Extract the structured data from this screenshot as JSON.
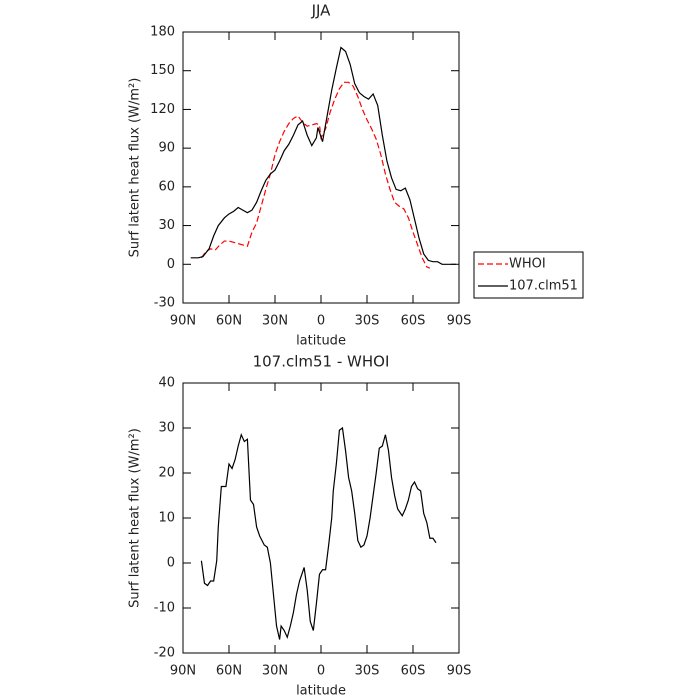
{
  "chart_data": [
    {
      "type": "line",
      "title": "JJA",
      "xlabel": "latitude",
      "ylabel": "Surf latent heat flux (W/m²)",
      "xlim": [
        90,
        -90
      ],
      "xticks": [
        {
          "value": 90,
          "label": "90N"
        },
        {
          "value": 60,
          "label": "60N"
        },
        {
          "value": 30,
          "label": "30N"
        },
        0,
        {
          "value": -30,
          "label": "30S"
        },
        {
          "value": -60,
          "label": "60S"
        },
        {
          "value": -90,
          "label": "90S"
        }
      ],
      "ylim": [
        -30,
        180
      ],
      "yticks": [
        -30,
        0,
        30,
        60,
        90,
        120,
        150,
        180
      ],
      "legend": "right",
      "series": [
        {
          "name": "WHOI",
          "color": "#ff0000",
          "linestyle": "dashed",
          "x": [
            78,
            75,
            72,
            69,
            66,
            63,
            60,
            57,
            54,
            51,
            48,
            45,
            42,
            39,
            36,
            33,
            30,
            27,
            24,
            21,
            18,
            15,
            12,
            9,
            6,
            3,
            1,
            0,
            -3,
            -6,
            -9,
            -12,
            -15,
            -18,
            -21,
            -24,
            -27,
            -30,
            -33,
            -36,
            -39,
            -42,
            -45,
            -48,
            -51,
            -54,
            -57,
            -60,
            -63,
            -66,
            -69,
            -71
          ],
          "values": [
            5,
            10,
            12,
            11,
            15,
            18,
            18,
            17,
            16,
            15,
            14,
            25,
            32,
            45,
            58,
            70,
            85,
            95,
            103,
            109,
            113,
            115,
            110,
            107,
            108,
            109,
            108,
            98,
            105,
            118,
            128,
            136,
            141,
            141,
            138,
            130,
            120,
            112,
            105,
            97,
            85,
            70,
            58,
            48,
            45,
            43,
            36,
            25,
            15,
            5,
            -2,
            -3
          ]
        },
        {
          "name": "107.clm51",
          "color": "#000000",
          "linestyle": "solid",
          "x": [
            85,
            80,
            77,
            73,
            70,
            67,
            63,
            60,
            57,
            54,
            51,
            48,
            45,
            42,
            39,
            36,
            33,
            30,
            27,
            24,
            21,
            18,
            15,
            12,
            9,
            6,
            3,
            2,
            -1,
            -4,
            -7,
            -10,
            -13,
            -16,
            -19,
            -22,
            -25,
            -28,
            -31,
            -34,
            -37,
            -40,
            -43,
            -46,
            -49,
            -52,
            -55,
            -58,
            -61,
            -64,
            -67,
            -70,
            -73,
            -76,
            -79,
            -82,
            -85,
            -88
          ],
          "values": [
            5,
            5,
            6,
            12,
            22,
            30,
            36,
            39,
            41,
            44,
            42,
            40,
            42,
            48,
            57,
            65,
            70,
            73,
            80,
            88,
            93,
            100,
            108,
            111,
            100,
            92,
            98,
            106,
            95,
            115,
            135,
            152,
            168,
            165,
            155,
            140,
            133,
            130,
            128,
            132,
            123,
            100,
            80,
            67,
            58,
            57,
            59,
            50,
            35,
            20,
            8,
            3,
            2,
            2,
            0,
            0,
            0,
            0
          ]
        }
      ]
    },
    {
      "type": "line",
      "title": "107.clm51 - WHOI",
      "xlabel": "latitude",
      "ylabel": "Surf latent heat flux (W/m²)",
      "xlim": [
        90,
        -90
      ],
      "xticks": [
        {
          "value": 90,
          "label": "90N"
        },
        {
          "value": 60,
          "label": "60N"
        },
        {
          "value": 30,
          "label": "30N"
        },
        0,
        {
          "value": -30,
          "label": "30S"
        },
        {
          "value": -60,
          "label": "60S"
        },
        {
          "value": -90,
          "label": "90S"
        }
      ],
      "ylim": [
        -20,
        40
      ],
      "yticks": [
        -20,
        -10,
        0,
        10,
        20,
        30,
        40
      ],
      "series": [
        {
          "color": "#000000",
          "linestyle": "solid",
          "x": [
            78,
            76,
            74,
            72,
            70,
            68,
            67,
            65,
            62,
            60,
            58,
            56,
            54,
            52,
            50,
            48,
            46,
            44,
            42,
            40,
            37,
            35,
            33,
            31,
            29,
            27,
            26,
            24,
            22,
            20,
            18,
            16,
            14,
            11,
            9,
            7,
            5,
            3,
            1,
            -1,
            -3,
            -5,
            -7,
            -8,
            -10,
            -12,
            -14,
            -16,
            -18,
            -20,
            -22,
            -24,
            -26,
            -28,
            -30,
            -32,
            -34,
            -36,
            -38,
            -40,
            -42,
            -44,
            -46,
            -48,
            -50,
            -52,
            -53,
            -55,
            -57,
            -59,
            -61,
            -63,
            -65,
            -67,
            -69,
            -71,
            -73,
            -75
          ],
          "values": [
            0.5,
            -4.5,
            -5,
            -4,
            -4,
            0.5,
            8,
            17,
            17,
            22,
            21,
            23,
            26,
            28.5,
            27,
            27.5,
            14,
            13,
            8,
            6,
            4,
            3.5,
            0,
            -7,
            -14,
            -17,
            -14,
            -15,
            -16.5,
            -14,
            -11,
            -7,
            -4,
            -1,
            -6,
            -13,
            -15,
            -9,
            -2.5,
            -1.5,
            -1.5,
            4,
            10,
            16,
            22,
            29.5,
            30,
            25,
            19,
            16,
            11,
            5,
            3.5,
            4,
            6,
            10,
            15,
            20,
            25.5,
            26,
            28.5,
            25,
            19,
            15,
            12,
            11,
            10.5,
            12,
            14,
            17,
            18,
            16.5,
            16,
            11,
            9,
            5.5,
            5.5,
            4.5
          ]
        }
      ]
    }
  ]
}
